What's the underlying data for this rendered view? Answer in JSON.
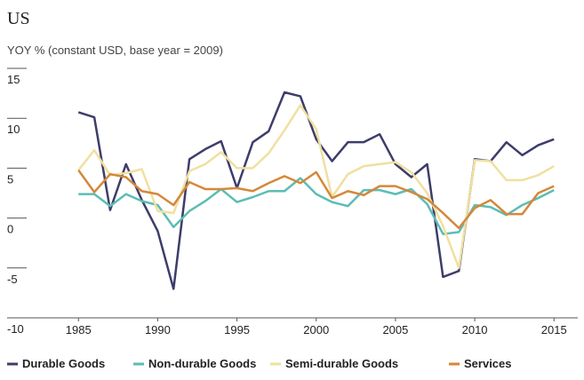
{
  "chart_data": {
    "type": "line",
    "title": "US",
    "subtitle": "YOY % (constant USD, base year = 2009)",
    "x": [
      1985,
      1986,
      1987,
      1988,
      1989,
      1990,
      1991,
      1992,
      1993,
      1994,
      1995,
      1996,
      1997,
      1998,
      1999,
      2000,
      2001,
      2002,
      2003,
      2004,
      2005,
      2006,
      2007,
      2008,
      2009,
      2010,
      2011,
      2012,
      2013,
      2014,
      2015
    ],
    "series": [
      {
        "name": "Durable Goods",
        "color": "#3d3d6b",
        "values": [
          10.6,
          10.1,
          0.8,
          5.4,
          1.8,
          -1.3,
          -7.1,
          5.9,
          6.9,
          7.7,
          3.0,
          7.6,
          8.7,
          12.6,
          12.2,
          7.9,
          5.7,
          7.6,
          7.6,
          8.4,
          5.4,
          4.1,
          5.4,
          -5.9,
          -5.3,
          5.9,
          5.7,
          7.6,
          6.3,
          7.3,
          7.9
        ]
      },
      {
        "name": "Non-durable Goods",
        "color": "#5bbdb5",
        "values": [
          2.4,
          2.4,
          1.2,
          2.4,
          1.7,
          1.3,
          -0.9,
          0.7,
          1.7,
          2.9,
          1.6,
          2.1,
          2.7,
          2.7,
          4.0,
          2.4,
          1.6,
          1.2,
          2.8,
          2.8,
          2.4,
          2.9,
          1.4,
          -1.6,
          -1.4,
          1.3,
          1.1,
          0.3,
          1.3,
          2.0,
          2.8
        ]
      },
      {
        "name": "Semi-durable Goods",
        "color": "#f0e0a0",
        "values": [
          4.8,
          6.8,
          4.3,
          4.5,
          4.9,
          0.7,
          0.5,
          4.7,
          5.4,
          6.6,
          5.0,
          5.0,
          6.5,
          8.8,
          11.3,
          8.9,
          2.1,
          4.4,
          5.2,
          5.4,
          5.6,
          4.6,
          2.5,
          -0.8,
          -5.0,
          5.8,
          5.7,
          3.8,
          3.8,
          4.3,
          5.2
        ]
      },
      {
        "name": "Services",
        "color": "#d4883a",
        "values": [
          4.8,
          2.6,
          4.4,
          4.1,
          2.7,
          2.4,
          1.3,
          3.6,
          2.9,
          2.9,
          3.0,
          2.7,
          3.5,
          4.2,
          3.5,
          4.6,
          2.0,
          2.7,
          2.3,
          3.2,
          3.2,
          2.6,
          1.9,
          0.5,
          -1.0,
          1.0,
          1.8,
          0.4,
          0.4,
          2.5,
          3.2
        ]
      }
    ],
    "xlim": [
      1980.5,
      2016.5
    ],
    "xticks": [
      1985,
      1990,
      1995,
      2000,
      2005,
      2010,
      2015
    ],
    "ylim": [
      -10,
      15
    ],
    "yticks": [
      -10,
      -5,
      0,
      5,
      10,
      15
    ]
  }
}
